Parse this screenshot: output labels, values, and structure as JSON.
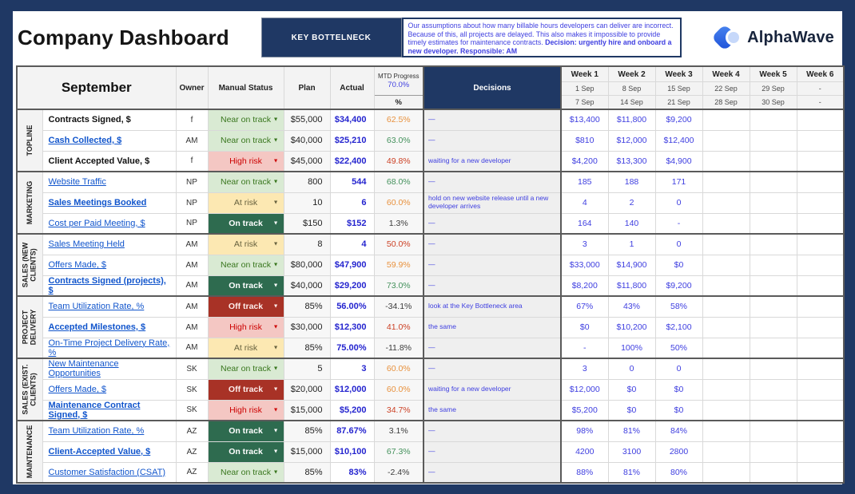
{
  "header": {
    "title": "Company Dashboard",
    "bottleneck_label": "KEY BOTTELNECK",
    "bottleneck_text_normal": "Our assumptions about how many billable hours developers can deliver are incorrect. Because of this, all projects are delayed. This also makes it impossible to provide timely estimates for maintenance contracts. ",
    "bottleneck_text_bold": "Decision: urgently hire and onboard a new developer. Responsible: AM",
    "logo_text": "AlphaWave"
  },
  "colors": {
    "frame_navy": "#1F3864",
    "link_blue": "#1155CC",
    "actual_blue": "#2424CF",
    "week_blue": "#3E3EE0"
  },
  "table": {
    "month_label": "September",
    "columns": {
      "owner": "Owner",
      "status": "Manual Status",
      "plan": "Plan",
      "actual": "Actual",
      "mtd_label": "MTD Progress",
      "mtd_value": "70.0%",
      "mtd_unit": "%",
      "decisions": "Decisions"
    },
    "weeks": [
      {
        "label": "Week 1",
        "start": "1 Sep",
        "end": "7 Sep"
      },
      {
        "label": "Week 2",
        "start": "8 Sep",
        "end": "14 Sep"
      },
      {
        "label": "Week 3",
        "start": "15 Sep",
        "end": "21 Sep"
      },
      {
        "label": "Week 4",
        "start": "22 Sep",
        "end": "28 Sep"
      },
      {
        "label": "Week 5",
        "start": "29 Sep",
        "end": "30 Sep"
      },
      {
        "label": "Week 6",
        "start": "-",
        "end": "-"
      }
    ],
    "status_styles": {
      "on": {
        "label": "On track",
        "bg": "#2E6B4F",
        "fg": "#FFFFFF",
        "bold": true
      },
      "near": {
        "label": "Near on track",
        "bg": "#D9EAD3",
        "fg": "#38761D",
        "bold": false
      },
      "at": {
        "label": "At risk",
        "bg": "#FCE8B2",
        "fg": "#66613E",
        "bold": false
      },
      "high": {
        "label": "High risk",
        "bg": "#F4C7C3",
        "fg": "#CC0000",
        "bold": false
      },
      "off": {
        "label": "Off track",
        "bg": "#A83226",
        "fg": "#FDEDEB",
        "bold": true
      }
    },
    "mtd_colors": {
      "orange": "#E8913D",
      "green": "#44915C",
      "red": "#CC4125",
      "black": "#3B3B3B"
    },
    "groups": [
      {
        "label": "TOPLINE",
        "rows": [
          {
            "metric": "Contracts Signed, $",
            "link": false,
            "bold": true,
            "owner": "f",
            "status": "near",
            "plan": "$55,000",
            "actual": "$34,400",
            "mtd": "62.5%",
            "mtd_color": "orange",
            "decision": "—",
            "weeks": [
              "$13,400",
              "$11,800",
              "$9,200",
              "",
              "",
              ""
            ]
          },
          {
            "metric": "Cash Collected, $",
            "link": true,
            "bold": true,
            "owner": "AM",
            "status": "near",
            "plan": "$40,000",
            "actual": "$25,210",
            "mtd": "63.0%",
            "mtd_color": "green",
            "decision": "—",
            "weeks": [
              "$810",
              "$12,000",
              "$12,400",
              "",
              "",
              ""
            ]
          },
          {
            "metric": "Client Accepted Value, $",
            "link": false,
            "bold": true,
            "owner": "f",
            "status": "high",
            "plan": "$45,000",
            "actual": "$22,400",
            "mtd": "49.8%",
            "mtd_color": "red",
            "decision": "waiting for a new developer",
            "weeks": [
              "$4,200",
              "$13,300",
              "$4,900",
              "",
              "",
              ""
            ]
          }
        ]
      },
      {
        "label": "MARKETING",
        "rows": [
          {
            "metric": "Website Traffic",
            "link": true,
            "bold": false,
            "owner": "NP",
            "status": "near",
            "plan": "800",
            "actual": "544",
            "mtd": "68.0%",
            "mtd_color": "green",
            "decision": "—",
            "weeks": [
              "185",
              "188",
              "171",
              "",
              "",
              ""
            ]
          },
          {
            "metric": "Sales Meetings Booked",
            "link": true,
            "bold": true,
            "owner": "NP",
            "status": "at",
            "plan": "10",
            "actual": "6",
            "mtd": "60.0%",
            "mtd_color": "orange",
            "decision": "hold on new website release until a new developer arrives",
            "weeks": [
              "4",
              "2",
              "0",
              "",
              "",
              ""
            ]
          },
          {
            "metric": "Cost per Paid Meeting, $",
            "link": true,
            "bold": false,
            "owner": "NP",
            "status": "on",
            "plan": "$150",
            "actual": "$152",
            "mtd": "1.3%",
            "mtd_color": "black",
            "decision": "—",
            "weeks": [
              "164",
              "140",
              "-",
              "",
              "",
              ""
            ]
          }
        ]
      },
      {
        "label": "SALES (NEW CLIENTS)",
        "rows": [
          {
            "metric": "Sales Meeting Held",
            "link": true,
            "bold": false,
            "owner": "AM",
            "status": "at",
            "plan": "8",
            "actual": "4",
            "mtd": "50.0%",
            "mtd_color": "red",
            "decision": "—",
            "weeks": [
              "3",
              "1",
              "0",
              "",
              "",
              ""
            ]
          },
          {
            "metric": "Offers Made, $",
            "link": true,
            "bold": false,
            "owner": "AM",
            "status": "near",
            "plan": "$80,000",
            "actual": "$47,900",
            "mtd": "59.9%",
            "mtd_color": "orange",
            "decision": "—",
            "weeks": [
              "$33,000",
              "$14,900",
              "$0",
              "",
              "",
              ""
            ]
          },
          {
            "metric": "Contracts Signed (projects), $",
            "link": true,
            "bold": true,
            "owner": "AM",
            "status": "on",
            "plan": "$40,000",
            "actual": "$29,200",
            "mtd": "73.0%",
            "mtd_color": "green",
            "decision": "—",
            "weeks": [
              "$8,200",
              "$11,800",
              "$9,200",
              "",
              "",
              ""
            ]
          }
        ]
      },
      {
        "label": "PROJECT DELIVERY",
        "rows": [
          {
            "metric": "Team Utilization Rate, %",
            "link": true,
            "bold": false,
            "owner": "AM",
            "status": "off",
            "plan": "85%",
            "actual": "56.00%",
            "mtd": "-34.1%",
            "mtd_color": "black",
            "decision": "look at the Key Bottleneck area",
            "weeks": [
              "67%",
              "43%",
              "58%",
              "",
              "",
              ""
            ]
          },
          {
            "metric": "Accepted Milestones, $",
            "link": true,
            "bold": true,
            "owner": "AM",
            "status": "high",
            "plan": "$30,000",
            "actual": "$12,300",
            "mtd": "41.0%",
            "mtd_color": "red",
            "decision": "the same",
            "weeks": [
              "$0",
              "$10,200",
              "$2,100",
              "",
              "",
              ""
            ]
          },
          {
            "metric": "On-Time Project Delivery Rate, %",
            "link": true,
            "bold": false,
            "owner": "AM",
            "status": "at",
            "plan": "85%",
            "actual": "75.00%",
            "mtd": "-11.8%",
            "mtd_color": "black",
            "decision": "—",
            "weeks": [
              "-",
              "100%",
              "50%",
              "",
              "",
              ""
            ]
          }
        ]
      },
      {
        "label": "SALES (EXIST. CLIENTS)",
        "rows": [
          {
            "metric": "New Maintenance Opportunities",
            "link": true,
            "bold": false,
            "owner": "SK",
            "status": "near",
            "plan": "5",
            "actual": "3",
            "mtd": "60.0%",
            "mtd_color": "orange",
            "decision": "—",
            "weeks": [
              "3",
              "0",
              "0",
              "",
              "",
              ""
            ]
          },
          {
            "metric": "Offers Made, $",
            "link": true,
            "bold": false,
            "owner": "SK",
            "status": "off",
            "plan": "$20,000",
            "actual": "$12,000",
            "mtd": "60.0%",
            "mtd_color": "orange",
            "decision": "waiting for a new developer",
            "weeks": [
              "$12,000",
              "$0",
              "$0",
              "",
              "",
              ""
            ]
          },
          {
            "metric": "Maintenance Contract Signed, $",
            "link": true,
            "bold": true,
            "owner": "SK",
            "status": "high",
            "plan": "$15,000",
            "actual": "$5,200",
            "mtd": "34.7%",
            "mtd_color": "red",
            "decision": "the same",
            "weeks": [
              "$5,200",
              "$0",
              "$0",
              "",
              "",
              ""
            ]
          }
        ]
      },
      {
        "label": "MAINTENANCE",
        "rows": [
          {
            "metric": "Team Utilization Rate, %",
            "link": true,
            "bold": false,
            "owner": "AZ",
            "status": "on",
            "plan": "85%",
            "actual": "87.67%",
            "mtd": "3.1%",
            "mtd_color": "black",
            "decision": "—",
            "weeks": [
              "98%",
              "81%",
              "84%",
              "",
              "",
              ""
            ]
          },
          {
            "metric": "Client-Accepted Value, $",
            "link": true,
            "bold": true,
            "owner": "AZ",
            "status": "on",
            "plan": "$15,000",
            "actual": "$10,100",
            "mtd": "67.3%",
            "mtd_color": "green",
            "decision": "—",
            "weeks": [
              "4200",
              "3100",
              "2800",
              "",
              "",
              ""
            ]
          },
          {
            "metric": "Customer Satisfaction (CSAT)",
            "link": true,
            "bold": false,
            "owner": "AZ",
            "status": "near",
            "plan": "85%",
            "actual": "83%",
            "mtd": "-2.4%",
            "mtd_color": "black",
            "decision": "—",
            "weeks": [
              "88%",
              "81%",
              "80%",
              "",
              "",
              ""
            ]
          }
        ]
      }
    ]
  }
}
